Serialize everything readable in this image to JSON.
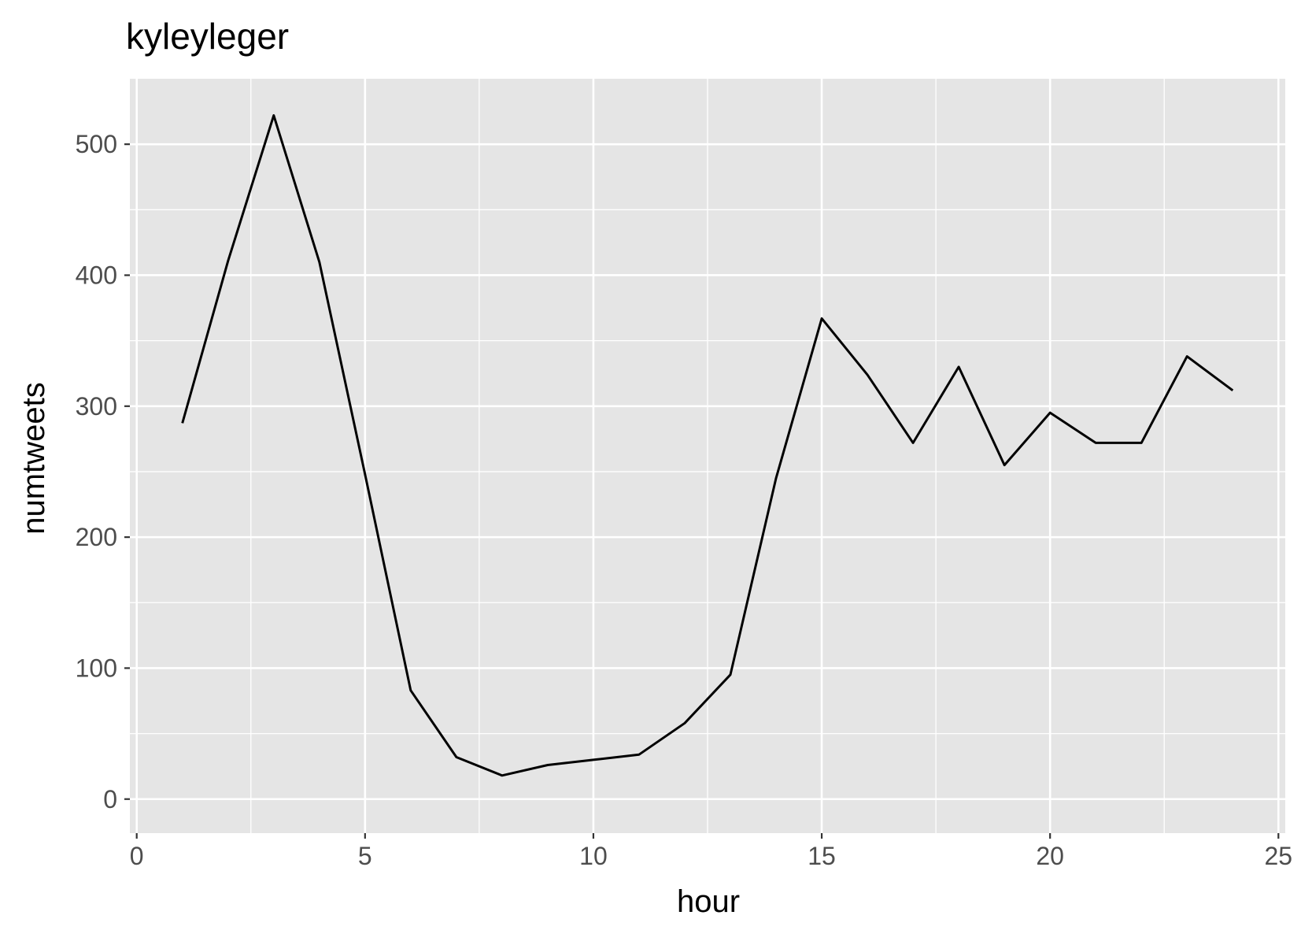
{
  "chart_data": {
    "type": "line",
    "title": "kyleyleger",
    "xlabel": "hour",
    "ylabel": "numtweets",
    "xlim": [
      -0.15,
      25.15
    ],
    "ylim": [
      -26,
      550
    ],
    "x_ticks": [
      0,
      5,
      10,
      15,
      20,
      25
    ],
    "y_ticks": [
      0,
      100,
      200,
      300,
      400,
      500
    ],
    "x_minor": [
      2.5,
      7.5,
      12.5,
      17.5,
      22.5
    ],
    "y_minor": [
      50,
      150,
      250,
      350,
      450
    ],
    "grid": true,
    "legend": "none",
    "colors": {
      "panel": "#e5e5e5",
      "grid": "#ffffff",
      "line": "#000000",
      "tick": "#4d4d4d"
    },
    "series": [
      {
        "x": [
          1,
          2,
          3,
          4,
          5,
          6,
          7,
          8,
          9,
          10,
          11,
          12,
          13,
          14,
          15,
          16,
          17,
          18,
          19,
          20,
          21,
          22,
          23,
          24
        ],
        "values": [
          287,
          411,
          522,
          410,
          248,
          83,
          32,
          18,
          26,
          30,
          34,
          58,
          95,
          245,
          367,
          324,
          272,
          330,
          255,
          295,
          272,
          272,
          338,
          312
        ]
      }
    ]
  }
}
